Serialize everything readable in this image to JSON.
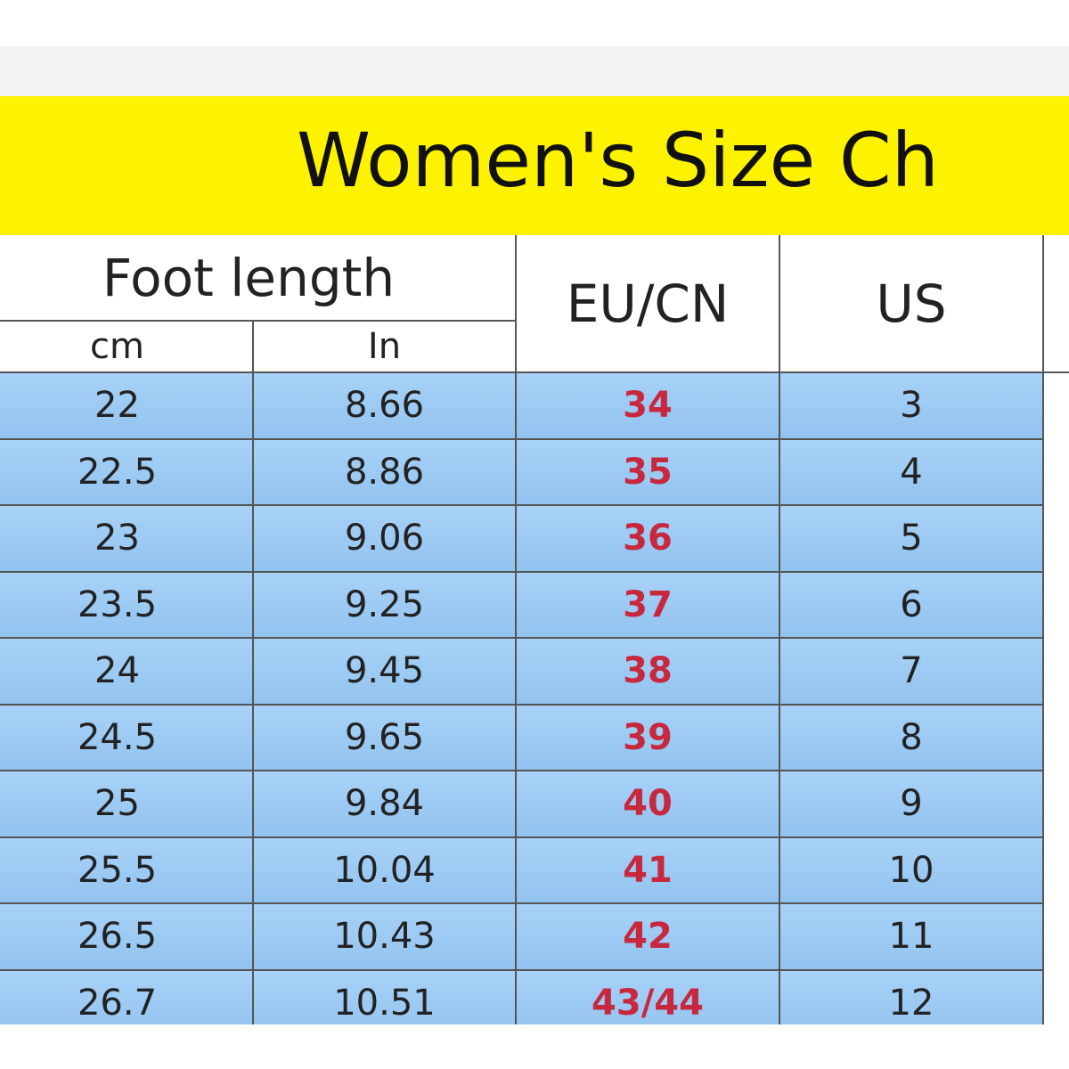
{
  "header": {
    "title": "Women's Size Ch"
  },
  "table": {
    "columns": {
      "foot_length": "Foot length",
      "cm": "cm",
      "in": "In",
      "eu_cn": "EU/CN",
      "us": "US"
    },
    "rows": [
      [
        "22",
        "8.66",
        "34",
        "3"
      ],
      [
        "22.5",
        "8.86",
        "35",
        "4"
      ],
      [
        "23",
        "9.06",
        "36",
        "5"
      ],
      [
        "23.5",
        "9.25",
        "37",
        "6"
      ],
      [
        "24",
        "9.45",
        "38",
        "7"
      ],
      [
        "24.5",
        "9.65",
        "39",
        "8"
      ],
      [
        "25",
        "9.84",
        "40",
        "9"
      ],
      [
        "25.5",
        "10.04",
        "41",
        "10"
      ],
      [
        "26.5",
        "10.43",
        "42",
        "11"
      ],
      [
        "26.7",
        "10.51",
        "43/44",
        "12"
      ]
    ]
  }
}
